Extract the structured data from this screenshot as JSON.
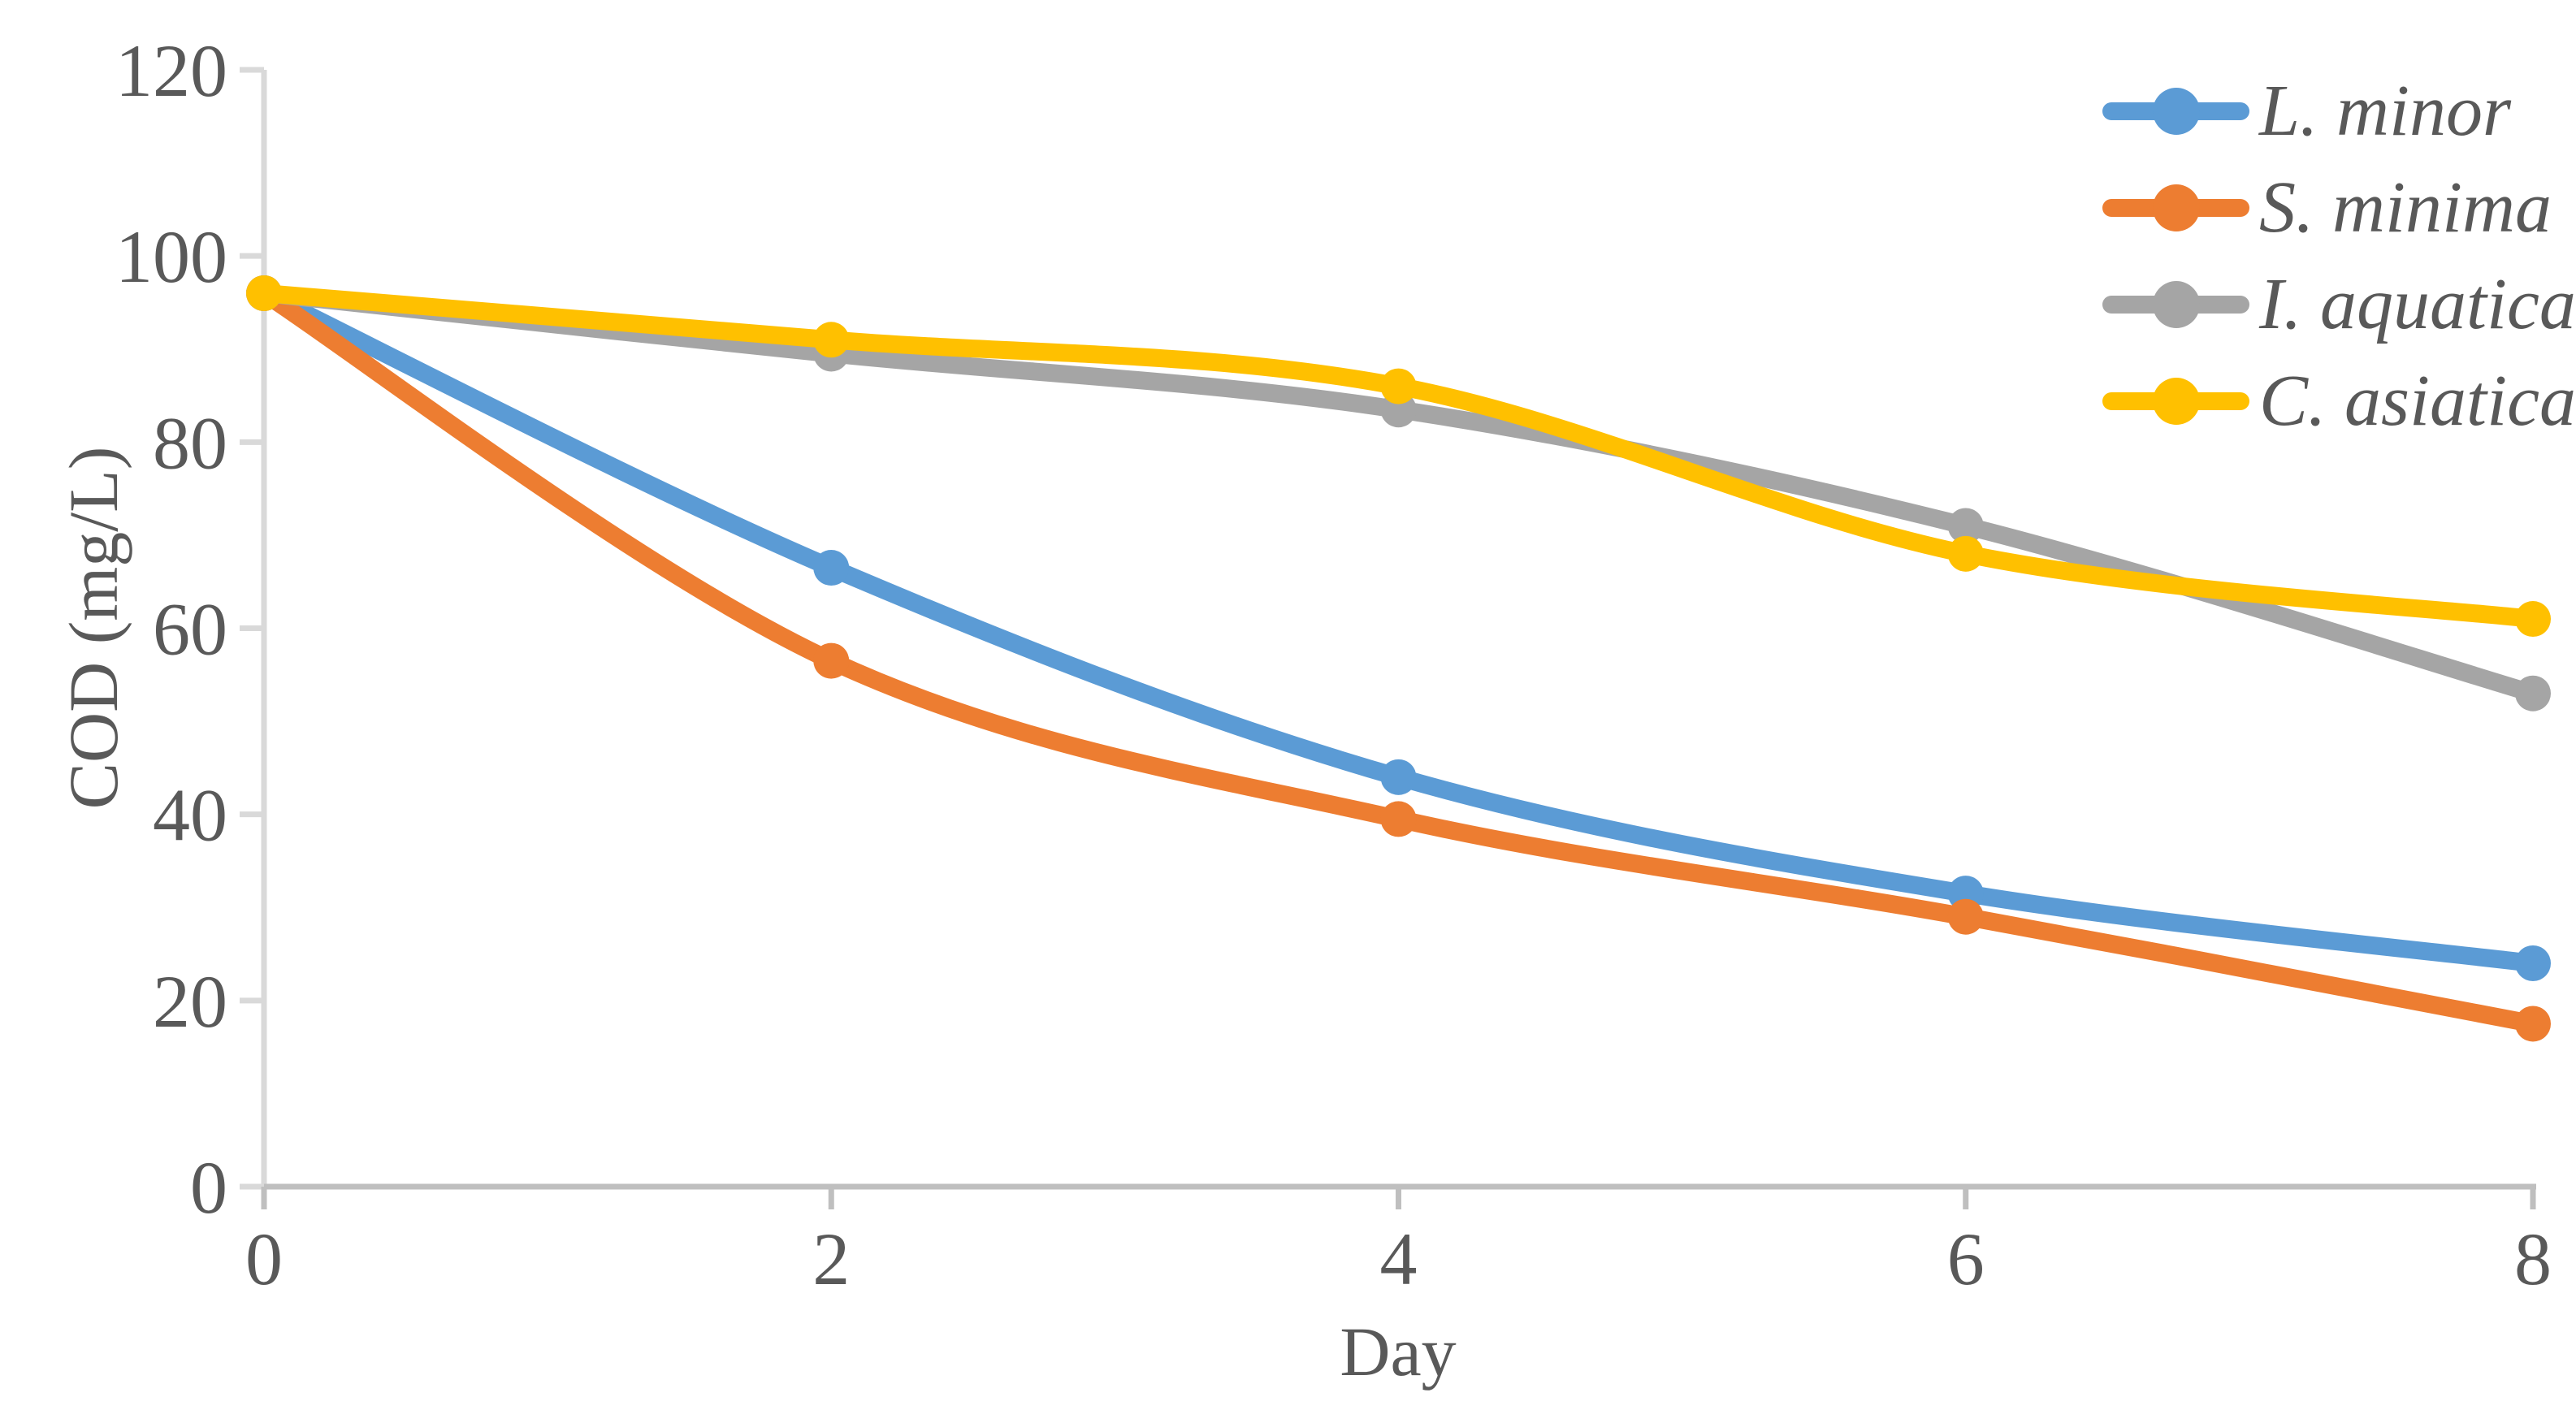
{
  "chart_data": {
    "type": "line",
    "x": [
      0,
      2,
      4,
      6,
      8
    ],
    "x_ticks": [
      "0",
      "2",
      "4",
      "6",
      "8"
    ],
    "y_ticks": [
      "0",
      "20",
      "40",
      "60",
      "80",
      "100",
      "120"
    ],
    "xlabel": "Day",
    "ylabel": "COD (mg/L)",
    "xlim": [
      0,
      8
    ],
    "ylim": [
      0,
      120
    ],
    "grid": false,
    "legend_position": "top-right",
    "series": [
      {
        "name": "L. minor",
        "color": "#5B9BD5",
        "values": [
          96,
          66.5,
          44,
          31.5,
          24
        ]
      },
      {
        "name": "S. minima",
        "color": "#ED7D31",
        "values": [
          96,
          56.5,
          39.5,
          29,
          17.5
        ]
      },
      {
        "name": "I. aquatica",
        "color": "#A5A5A5",
        "values": [
          96,
          89.5,
          83.5,
          71,
          53
        ]
      },
      {
        "name": "C. asiatica",
        "color": "#FFC000",
        "values": [
          96,
          91,
          86,
          68,
          61
        ]
      }
    ],
    "colors": {
      "text": "#595959",
      "y_axis": "#D9D9D9",
      "x_axis": "#BFBFBF"
    }
  }
}
